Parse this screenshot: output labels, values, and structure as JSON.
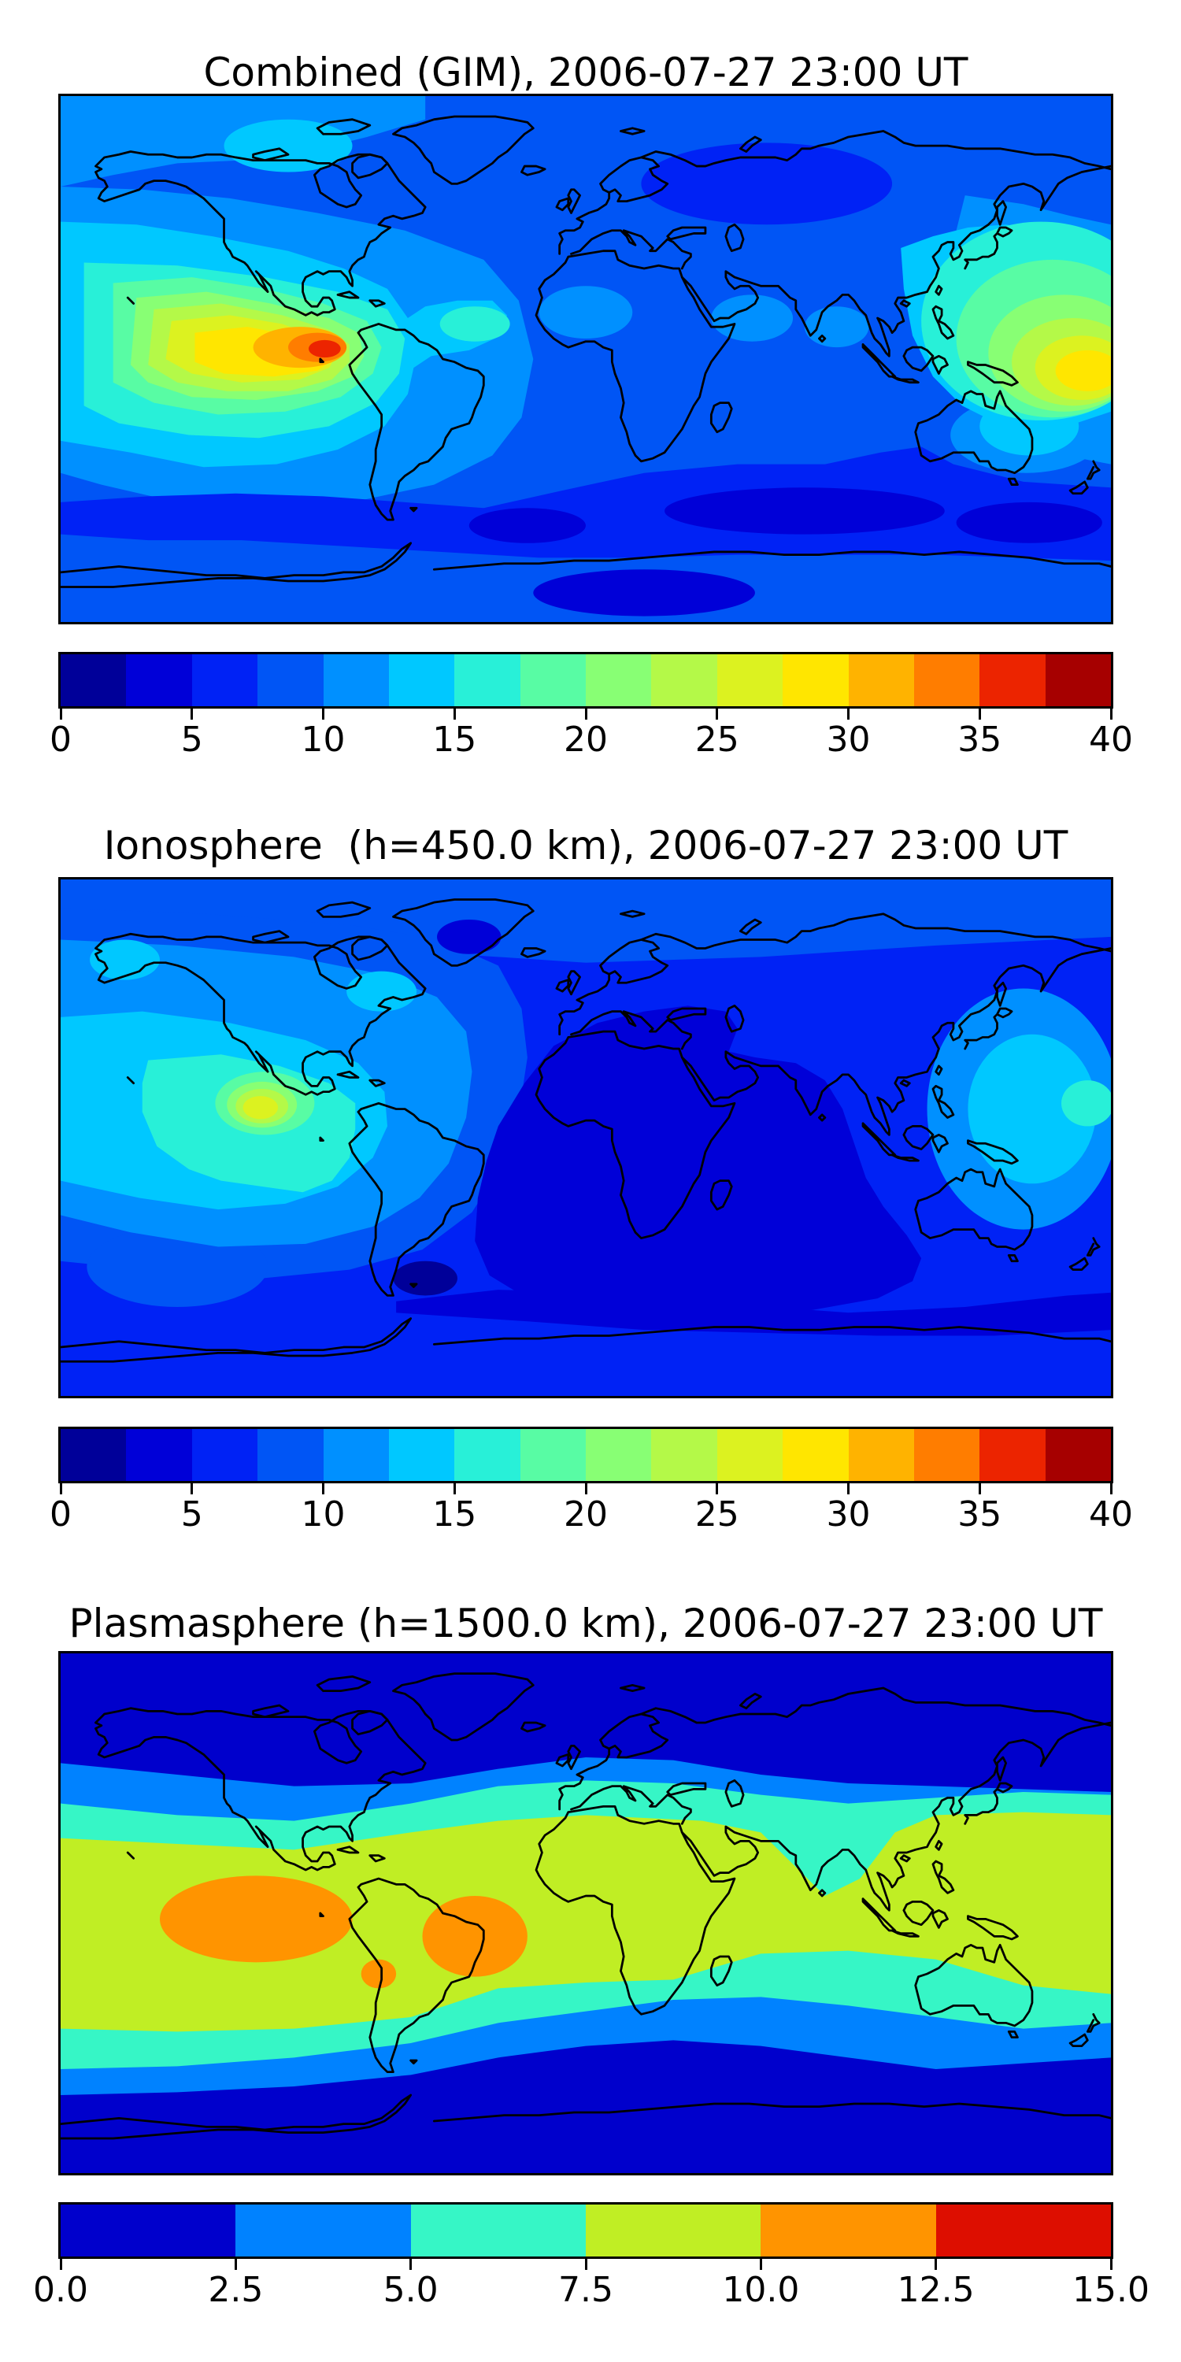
{
  "figure": {
    "background": "#ffffff",
    "text_color": "#000000",
    "coastline_color": "#000000",
    "n_panels": 3
  },
  "panels": [
    {
      "id": "combined",
      "title": "Combined (GIM), 2006-07-27 23:00 UT"
    },
    {
      "id": "ionosphere",
      "title": "Ionosphere  (h=450.0 km), 2006-07-27 23:00 UT"
    },
    {
      "id": "plasmasphere",
      "title": "Plasmasphere (h=1500.0 km), 2006-07-27 23:00 UT"
    }
  ],
  "chart_data": [
    {
      "type": "heatmap",
      "subtype": "filled_contour_world_map",
      "title": "Combined (GIM), 2006-07-27 23:00 UT",
      "datetime_ut": "2006-07-27 23:00",
      "projection": "equirectangular",
      "lon_range": [
        -180,
        180
      ],
      "lat_range": [
        -90,
        90
      ],
      "value_range": [
        0,
        40
      ],
      "contour_step": 2.5,
      "grid": false,
      "colorbar": {
        "orientation": "horizontal",
        "position": "below",
        "min": 0,
        "max": 40,
        "n_segments": 16,
        "tick_labels": [
          "0",
          "5",
          "10",
          "15",
          "20",
          "25",
          "30",
          "35",
          "40"
        ],
        "colors": [
          "#000099",
          "#0000d8",
          "#0022f5",
          "#0055f5",
          "#0090ff",
          "#00c8ff",
          "#28f0d8",
          "#58fca4",
          "#88ff74",
          "#b4f948",
          "#dcf220",
          "#ffe600",
          "#ffb300",
          "#ff7d00",
          "#ec2400",
          "#a60000"
        ]
      },
      "features": [
        {
          "feature": "equatorial_anomaly_peak_east_pacific",
          "lon": -90,
          "lat": 4,
          "approx_value": 38
        },
        {
          "feature": "west_pacific_enhancement",
          "lon": 166,
          "lat": -2,
          "approx_value": 27
        },
        {
          "feature": "tropical_atlantic_ridge",
          "lon": -35,
          "lat": 12,
          "approx_value": 15
        },
        {
          "feature": "north_eurasia_minimum",
          "lon": 60,
          "lat": 60,
          "approx_value": 5
        },
        {
          "feature": "southern_ocean_minimum",
          "lon": 70,
          "lat": -52,
          "approx_value": 4
        }
      ]
    },
    {
      "type": "heatmap",
      "subtype": "filled_contour_world_map",
      "title": "Ionosphere  (h=450.0 km), 2006-07-27 23:00 UT",
      "datetime_ut": "2006-07-27 23:00",
      "altitude_km": 450.0,
      "projection": "equirectangular",
      "lon_range": [
        -180,
        180
      ],
      "lat_range": [
        -90,
        90
      ],
      "value_range": [
        0,
        40
      ],
      "contour_step": 2.5,
      "grid": false,
      "colorbar": {
        "orientation": "horizontal",
        "position": "below",
        "min": 0,
        "max": 40,
        "n_segments": 16,
        "tick_labels": [
          "0",
          "5",
          "10",
          "15",
          "20",
          "25",
          "30",
          "35",
          "40"
        ],
        "colors": [
          "#000099",
          "#0000d8",
          "#0022f5",
          "#0055f5",
          "#0090ff",
          "#00c8ff",
          "#28f0d8",
          "#58fca4",
          "#88ff74",
          "#b4f948",
          "#dcf220",
          "#ffe600",
          "#ffb300",
          "#ff7d00",
          "#ec2400",
          "#a60000"
        ]
      },
      "features": [
        {
          "feature": "east_pacific_daytime_peak",
          "lon": -110,
          "lat": 12,
          "approx_value": 22
        },
        {
          "feature": "africa_indian_ocean_minimum",
          "lon": 20,
          "lat": -10,
          "approx_value": 4
        },
        {
          "feature": "southern_ocean_minimum",
          "lon": -50,
          "lat": -45,
          "approx_value": 3
        },
        {
          "feature": "north_america_moderate_plateau",
          "lon": -100,
          "lat": 45,
          "approx_value": 11
        }
      ]
    },
    {
      "type": "heatmap",
      "subtype": "filled_contour_world_map",
      "title": "Plasmasphere (h=1500.0 km), 2006-07-27 23:00 UT",
      "datetime_ut": "2006-07-27 23:00",
      "altitude_km": 1500.0,
      "projection": "equirectangular",
      "lon_range": [
        -180,
        180
      ],
      "lat_range": [
        -90,
        90
      ],
      "value_range": [
        0,
        15
      ],
      "contour_step": 2.5,
      "grid": false,
      "colorbar": {
        "orientation": "horizontal",
        "position": "below",
        "min": 0,
        "max": 15,
        "n_segments": 6,
        "tick_labels": [
          "0.0",
          "2.5",
          "5.0",
          "7.5",
          "10.0",
          "12.5",
          "15.0"
        ],
        "colors": [
          "#0000cc",
          "#0082ff",
          "#36f6c6",
          "#c0ee24",
          "#ff9400",
          "#dd0e00"
        ]
      },
      "features": [
        {
          "feature": "equatorial_band",
          "lon": 0,
          "lat": 0,
          "approx_value": 9
        },
        {
          "feature": "east_pacific_maximum",
          "lon": -113,
          "lat": -2,
          "approx_value": 11
        },
        {
          "feature": "south_america_maximum",
          "lon": -38,
          "lat": -8,
          "approx_value": 11
        },
        {
          "feature": "andes_secondary_maximum",
          "lon": -71,
          "lat": -21,
          "approx_value": 11
        },
        {
          "feature": "polar_minimum",
          "lon": 0,
          "lat": 75,
          "approx_value": 2
        }
      ]
    }
  ]
}
